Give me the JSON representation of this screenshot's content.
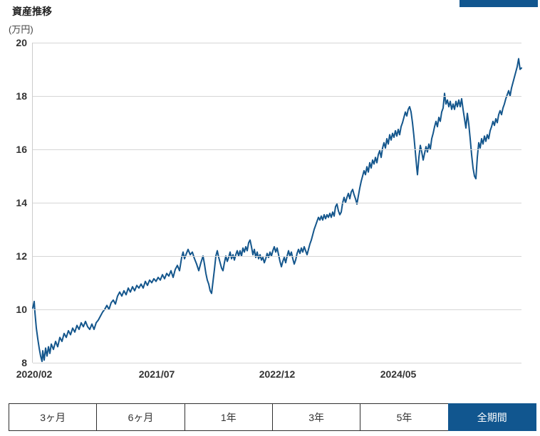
{
  "header": {
    "title": "資産推移",
    "unit_label": "(万円)"
  },
  "colors": {
    "accent_blue": "#11568f",
    "line_blue": "#14568c",
    "grid_gray": "#d6d6d6"
  },
  "chart_data": {
    "type": "line",
    "title": "資産推移",
    "ylabel": "(万円)",
    "xlabel": "",
    "ylim": [
      8,
      20
    ],
    "yticks": [
      20,
      18,
      16,
      14,
      12,
      10,
      8
    ],
    "grid": "horizontal-only",
    "legend": "none",
    "xticks": [
      {
        "label": "2020/02",
        "x": 3
      },
      {
        "label": "2021/07",
        "x": 175
      },
      {
        "label": "2022/12",
        "x": 344
      },
      {
        "label": "2024/05",
        "x": 514
      }
    ],
    "x_unit": "px-offset-in-plot (0=2020/02 area, ~10px per month, plot width 687)",
    "series": [
      {
        "points": [
          [
            0,
            10.05
          ],
          [
            2,
            10.3
          ],
          [
            3,
            9.9
          ],
          [
            5,
            9.3
          ],
          [
            7,
            8.9
          ],
          [
            9,
            8.55
          ],
          [
            11,
            8.25
          ],
          [
            13,
            8.05
          ],
          [
            14,
            8.45
          ],
          [
            16,
            8.1
          ],
          [
            18,
            8.55
          ],
          [
            20,
            8.25
          ],
          [
            22,
            8.6
          ],
          [
            24,
            8.35
          ],
          [
            26,
            8.7
          ],
          [
            29,
            8.5
          ],
          [
            32,
            8.8
          ],
          [
            35,
            8.6
          ],
          [
            38,
            8.95
          ],
          [
            41,
            8.8
          ],
          [
            44,
            9.1
          ],
          [
            47,
            8.95
          ],
          [
            50,
            9.2
          ],
          [
            53,
            9.05
          ],
          [
            56,
            9.3
          ],
          [
            59,
            9.15
          ],
          [
            62,
            9.4
          ],
          [
            65,
            9.25
          ],
          [
            68,
            9.5
          ],
          [
            71,
            9.35
          ],
          [
            74,
            9.55
          ],
          [
            77,
            9.35
          ],
          [
            80,
            9.25
          ],
          [
            83,
            9.45
          ],
          [
            86,
            9.25
          ],
          [
            89,
            9.5
          ],
          [
            92,
            9.6
          ],
          [
            95,
            9.75
          ],
          [
            98,
            9.9
          ],
          [
            101,
            10.0
          ],
          [
            104,
            10.15
          ],
          [
            107,
            10.0
          ],
          [
            110,
            10.25
          ],
          [
            113,
            10.35
          ],
          [
            116,
            10.2
          ],
          [
            119,
            10.5
          ],
          [
            122,
            10.65
          ],
          [
            125,
            10.5
          ],
          [
            128,
            10.7
          ],
          [
            131,
            10.55
          ],
          [
            134,
            10.8
          ],
          [
            137,
            10.65
          ],
          [
            140,
            10.85
          ],
          [
            143,
            10.7
          ],
          [
            146,
            10.9
          ],
          [
            149,
            10.8
          ],
          [
            152,
            10.95
          ],
          [
            155,
            10.8
          ],
          [
            158,
            11.05
          ],
          [
            161,
            10.9
          ],
          [
            164,
            11.1
          ],
          [
            167,
            11.0
          ],
          [
            170,
            11.15
          ],
          [
            173,
            11.05
          ],
          [
            176,
            11.2
          ],
          [
            179,
            11.1
          ],
          [
            182,
            11.3
          ],
          [
            185,
            11.15
          ],
          [
            188,
            11.35
          ],
          [
            191,
            11.25
          ],
          [
            194,
            11.45
          ],
          [
            197,
            11.2
          ],
          [
            200,
            11.5
          ],
          [
            203,
            11.65
          ],
          [
            206,
            11.45
          ],
          [
            209,
            11.95
          ],
          [
            211,
            12.15
          ],
          [
            213,
            11.9
          ],
          [
            215,
            12.05
          ],
          [
            218,
            12.25
          ],
          [
            221,
            12.05
          ],
          [
            224,
            12.15
          ],
          [
            227,
            11.9
          ],
          [
            230,
            11.7
          ],
          [
            233,
            11.45
          ],
          [
            236,
            11.75
          ],
          [
            239,
            12.0
          ],
          [
            241,
            11.7
          ],
          [
            243,
            11.35
          ],
          [
            245,
            11.1
          ],
          [
            247,
            10.95
          ],
          [
            249,
            10.7
          ],
          [
            251,
            10.6
          ],
          [
            253,
            11.05
          ],
          [
            255,
            11.5
          ],
          [
            257,
            12.0
          ],
          [
            259,
            12.2
          ],
          [
            261,
            11.95
          ],
          [
            263,
            11.75
          ],
          [
            265,
            11.55
          ],
          [
            267,
            11.45
          ],
          [
            269,
            11.75
          ],
          [
            271,
            12.0
          ],
          [
            273,
            11.8
          ],
          [
            275,
            11.95
          ],
          [
            277,
            12.15
          ],
          [
            279,
            11.9
          ],
          [
            281,
            12.05
          ],
          [
            283,
            11.85
          ],
          [
            285,
            12.05
          ],
          [
            287,
            12.2
          ],
          [
            289,
            12.0
          ],
          [
            291,
            12.2
          ],
          [
            293,
            12.0
          ],
          [
            295,
            12.3
          ],
          [
            297,
            12.15
          ],
          [
            299,
            12.35
          ],
          [
            301,
            12.2
          ],
          [
            303,
            12.5
          ],
          [
            305,
            12.6
          ],
          [
            307,
            12.35
          ],
          [
            309,
            12.05
          ],
          [
            311,
            12.25
          ],
          [
            313,
            11.95
          ],
          [
            315,
            12.15
          ],
          [
            317,
            11.9
          ],
          [
            319,
            12.05
          ],
          [
            321,
            11.85
          ],
          [
            323,
            11.95
          ],
          [
            325,
            11.75
          ],
          [
            327,
            11.9
          ],
          [
            329,
            12.1
          ],
          [
            331,
            11.95
          ],
          [
            333,
            12.15
          ],
          [
            335,
            12.0
          ],
          [
            337,
            12.2
          ],
          [
            339,
            12.35
          ],
          [
            341,
            12.15
          ],
          [
            343,
            12.3
          ],
          [
            345,
            12.05
          ],
          [
            347,
            11.8
          ],
          [
            349,
            11.6
          ],
          [
            351,
            11.8
          ],
          [
            353,
            11.95
          ],
          [
            355,
            11.75
          ],
          [
            357,
            12.0
          ],
          [
            359,
            12.2
          ],
          [
            361,
            12.0
          ],
          [
            363,
            12.15
          ],
          [
            365,
            11.9
          ],
          [
            367,
            11.7
          ],
          [
            369,
            11.85
          ],
          [
            371,
            12.1
          ],
          [
            373,
            12.25
          ],
          [
            375,
            12.1
          ],
          [
            377,
            12.3
          ],
          [
            379,
            12.15
          ],
          [
            381,
            12.35
          ],
          [
            383,
            12.2
          ],
          [
            385,
            12.05
          ],
          [
            387,
            12.25
          ],
          [
            389,
            12.45
          ],
          [
            391,
            12.6
          ],
          [
            393,
            12.8
          ],
          [
            395,
            13.0
          ],
          [
            397,
            13.15
          ],
          [
            399,
            13.3
          ],
          [
            401,
            13.45
          ],
          [
            403,
            13.35
          ],
          [
            405,
            13.5
          ],
          [
            407,
            13.35
          ],
          [
            409,
            13.55
          ],
          [
            411,
            13.4
          ],
          [
            413,
            13.55
          ],
          [
            415,
            13.45
          ],
          [
            417,
            13.6
          ],
          [
            419,
            13.45
          ],
          [
            421,
            13.65
          ],
          [
            423,
            13.5
          ],
          [
            425,
            13.85
          ],
          [
            427,
            13.95
          ],
          [
            429,
            13.7
          ],
          [
            431,
            13.55
          ],
          [
            433,
            13.65
          ],
          [
            435,
            14.0
          ],
          [
            437,
            14.2
          ],
          [
            439,
            14.0
          ],
          [
            441,
            14.2
          ],
          [
            443,
            14.35
          ],
          [
            445,
            14.15
          ],
          [
            447,
            14.4
          ],
          [
            449,
            14.5
          ],
          [
            451,
            14.3
          ],
          [
            453,
            14.15
          ],
          [
            455,
            13.95
          ],
          [
            457,
            14.25
          ],
          [
            459,
            14.55
          ],
          [
            461,
            14.8
          ],
          [
            463,
            15.0
          ],
          [
            465,
            15.2
          ],
          [
            467,
            15.05
          ],
          [
            469,
            15.35
          ],
          [
            471,
            15.15
          ],
          [
            473,
            15.5
          ],
          [
            475,
            15.3
          ],
          [
            477,
            15.6
          ],
          [
            479,
            15.45
          ],
          [
            481,
            15.7
          ],
          [
            483,
            15.5
          ],
          [
            485,
            15.8
          ],
          [
            487,
            15.95
          ],
          [
            489,
            15.7
          ],
          [
            491,
            16.05
          ],
          [
            493,
            16.25
          ],
          [
            495,
            16.05
          ],
          [
            497,
            16.4
          ],
          [
            499,
            16.2
          ],
          [
            501,
            16.55
          ],
          [
            503,
            16.35
          ],
          [
            505,
            16.6
          ],
          [
            507,
            16.45
          ],
          [
            509,
            16.7
          ],
          [
            511,
            16.5
          ],
          [
            513,
            16.75
          ],
          [
            515,
            16.55
          ],
          [
            517,
            16.85
          ],
          [
            519,
            17.0
          ],
          [
            521,
            17.2
          ],
          [
            523,
            17.4
          ],
          [
            525,
            17.25
          ],
          [
            527,
            17.5
          ],
          [
            529,
            17.6
          ],
          [
            531,
            17.4
          ],
          [
            533,
            17.0
          ],
          [
            535,
            16.5
          ],
          [
            537,
            15.9
          ],
          [
            539,
            15.3
          ],
          [
            540,
            15.05
          ],
          [
            542,
            15.7
          ],
          [
            544,
            16.15
          ],
          [
            546,
            15.9
          ],
          [
            548,
            15.6
          ],
          [
            550,
            15.85
          ],
          [
            552,
            16.1
          ],
          [
            554,
            15.9
          ],
          [
            556,
            16.2
          ],
          [
            558,
            16.0
          ],
          [
            560,
            16.4
          ],
          [
            562,
            16.6
          ],
          [
            564,
            16.85
          ],
          [
            566,
            17.05
          ],
          [
            568,
            16.85
          ],
          [
            570,
            17.2
          ],
          [
            572,
            17.05
          ],
          [
            574,
            17.4
          ],
          [
            576,
            17.55
          ],
          [
            578,
            18.1
          ],
          [
            580,
            17.7
          ],
          [
            582,
            17.85
          ],
          [
            584,
            17.6
          ],
          [
            586,
            17.8
          ],
          [
            588,
            17.5
          ],
          [
            590,
            17.7
          ],
          [
            592,
            17.5
          ],
          [
            594,
            17.8
          ],
          [
            596,
            17.6
          ],
          [
            598,
            17.85
          ],
          [
            600,
            17.6
          ],
          [
            602,
            17.9
          ],
          [
            604,
            17.5
          ],
          [
            606,
            17.15
          ],
          [
            608,
            16.8
          ],
          [
            610,
            17.35
          ],
          [
            612,
            16.95
          ],
          [
            614,
            16.4
          ],
          [
            616,
            15.8
          ],
          [
            618,
            15.3
          ],
          [
            620,
            15.0
          ],
          [
            622,
            14.9
          ],
          [
            624,
            15.7
          ],
          [
            626,
            16.25
          ],
          [
            628,
            16.05
          ],
          [
            630,
            16.4
          ],
          [
            632,
            16.2
          ],
          [
            634,
            16.5
          ],
          [
            636,
            16.3
          ],
          [
            638,
            16.55
          ],
          [
            640,
            16.4
          ],
          [
            642,
            16.7
          ],
          [
            644,
            16.85
          ],
          [
            646,
            17.05
          ],
          [
            648,
            16.9
          ],
          [
            650,
            17.15
          ],
          [
            652,
            17.0
          ],
          [
            654,
            17.3
          ],
          [
            656,
            17.45
          ],
          [
            658,
            17.3
          ],
          [
            660,
            17.55
          ],
          [
            662,
            17.7
          ],
          [
            664,
            17.9
          ],
          [
            666,
            18.05
          ],
          [
            668,
            18.2
          ],
          [
            670,
            18.0
          ],
          [
            672,
            18.3
          ],
          [
            674,
            18.5
          ],
          [
            676,
            18.7
          ],
          [
            678,
            18.9
          ],
          [
            680,
            19.1
          ],
          [
            682,
            19.4
          ],
          [
            684,
            19.0
          ],
          [
            686,
            19.05
          ]
        ]
      }
    ]
  },
  "period_buttons": {
    "items": [
      {
        "label": "3ヶ月",
        "active": false
      },
      {
        "label": "6ヶ月",
        "active": false
      },
      {
        "label": "1年",
        "active": false
      },
      {
        "label": "3年",
        "active": false
      },
      {
        "label": "5年",
        "active": false
      },
      {
        "label": "全期間",
        "active": true
      }
    ]
  }
}
